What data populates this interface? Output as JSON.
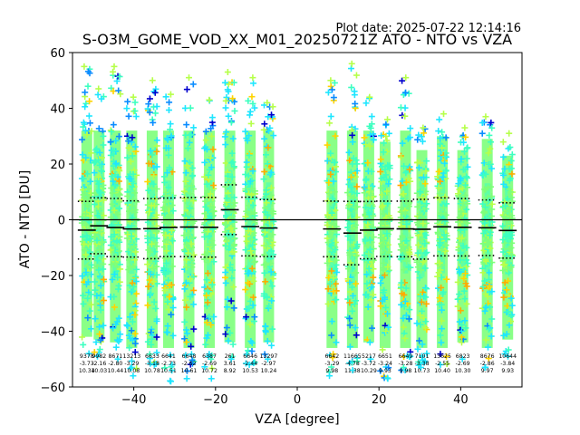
{
  "plot_date": "Plot date: 2025-07-22 12:14:16",
  "chart_data": {
    "type": "scatter",
    "title": "S-O3M_GOME_VOD_XX_M01_20250721Z ATO - NTO vs VZA",
    "xlabel": "VZA [degree]",
    "ylabel": "ATO - NTO [DU]",
    "xlim": [
      -55,
      55
    ],
    "ylim": [
      -60,
      60
    ],
    "xticks": [
      -40,
      -20,
      0,
      20,
      40
    ],
    "yticks": [
      -60,
      -40,
      -20,
      0,
      20,
      40,
      60
    ],
    "grid": false,
    "zero_line": 0,
    "marker": "plus",
    "colors": {
      "dense": "#7dff7a",
      "mid": "#3dffc0",
      "cyan": "#1fe6ff",
      "blue": "#0a8cff",
      "navy": "#0000cd",
      "yellow": "#ffd400",
      "orange": "#ffaa00",
      "lime": "#b6ff4a"
    },
    "bins": [
      {
        "x": -51.5,
        "n": "9378",
        "mean": -3.73,
        "std": 10.34,
        "ymin": -48,
        "ymax": 55,
        "std_label": "10.34",
        "mean_label": "-3.73"
      },
      {
        "x": -48.5,
        "n": "9982",
        "mean": -2.16,
        "std": 10.03,
        "ymin": -49,
        "ymax": 47,
        "std_label": "10.03",
        "mean_label": "-2.16"
      },
      {
        "x": -44.5,
        "n": "8671",
        "mean": -2.8,
        "std": 10.44,
        "ymin": -50,
        "ymax": 55,
        "std_label": "10.44",
        "mean_label": "-2.80"
      },
      {
        "x": -40.5,
        "n": "13213",
        "mean": -3.29,
        "std": 10.08,
        "ymin": -56,
        "ymax": 44,
        "std_label": "10.08",
        "mean_label": "-3.29"
      },
      {
        "x": -35.5,
        "n": "6633",
        "mean": -3.18,
        "std": 10.78,
        "ymin": -52,
        "ymax": 50,
        "std_label": "10.78",
        "mean_label": "-3.18"
      },
      {
        "x": -31.5,
        "n": "6641",
        "mean": -2.73,
        "std": 10.51,
        "ymin": -58,
        "ymax": 45,
        "std_label": "10.51",
        "mean_label": "-2.73"
      },
      {
        "x": -26.5,
        "n": "6648",
        "mean": -2.62,
        "std": 10.61,
        "ymin": -57,
        "ymax": 51,
        "std_label": "10.61",
        "mean_label": "-2.62"
      },
      {
        "x": -21.5,
        "n": "6387",
        "mean": -2.69,
        "std": 10.72,
        "ymin": -57,
        "ymax": 43,
        "std_label": "10.72",
        "mean_label": "-2.69"
      },
      {
        "x": -16.5,
        "n": "261",
        "mean": 3.61,
        "std": 8.92,
        "ymin": -50,
        "ymax": 53,
        "std_label": "8.92",
        "mean_label": "3.61"
      },
      {
        "x": -11.5,
        "n": "6646",
        "mean": -2.44,
        "std": 10.53,
        "ymin": -52,
        "ymax": 51,
        "std_label": "10.53",
        "mean_label": "-2.44"
      },
      {
        "x": -7.0,
        "n": "13297",
        "mean": -2.97,
        "std": 10.24,
        "ymin": -50,
        "ymax": 42,
        "std_label": "10.24",
        "mean_label": "-2.97"
      },
      {
        "x": 8.5,
        "n": "6642",
        "mean": -3.29,
        "std": 9.98,
        "ymin": -56,
        "ymax": 50,
        "std_label": "9.98",
        "mean_label": "-3.29"
      },
      {
        "x": 13.5,
        "n": "11665",
        "mean": -4.78,
        "std": 11.38,
        "ymin": -54,
        "ymax": 56,
        "std_label": "11.38",
        "mean_label": "-4.78"
      },
      {
        "x": 17.5,
        "n": "5217",
        "mean": -3.72,
        "std": 10.29,
        "ymin": -50,
        "ymax": 44,
        "std_label": "10.29",
        "mean_label": "-3.72"
      },
      {
        "x": 21.5,
        "n": "6651",
        "mean": -3.24,
        "std": 9.93,
        "ymin": -57,
        "ymax": 36,
        "std_label": "9.93",
        "mean_label": "-3.24"
      },
      {
        "x": 26.5,
        "n": "6649",
        "mean": -3.28,
        "std": 9.98,
        "ymin": -54,
        "ymax": 51,
        "std_label": "9.98",
        "mean_label": "-3.28"
      },
      {
        "x": 30.5,
        "n": "7101",
        "mean": -3.38,
        "std": 10.73,
        "ymin": -53,
        "ymax": 33,
        "std_label": "10.73",
        "mean_label": "-3.38"
      },
      {
        "x": 35.5,
        "n": "13625",
        "mean": -2.55,
        "std": 10.4,
        "ymin": -52,
        "ymax": 38,
        "std_label": "10.40",
        "mean_label": "-2.55"
      },
      {
        "x": 40.5,
        "n": "6823",
        "mean": -2.69,
        "std": 10.3,
        "ymin": -50,
        "ymax": 33,
        "std_label": "10.30",
        "mean_label": "-2.69"
      },
      {
        "x": 46.5,
        "n": "8676",
        "mean": -2.86,
        "std": 9.97,
        "ymin": -53,
        "ymax": 37,
        "std_label": "9.97",
        "mean_label": "-2.86"
      },
      {
        "x": 51.5,
        "n": "10644",
        "mean": -3.84,
        "std": 9.93,
        "ymin": -49,
        "ymax": 31,
        "std_label": "9.93",
        "mean_label": "-3.84"
      }
    ]
  }
}
